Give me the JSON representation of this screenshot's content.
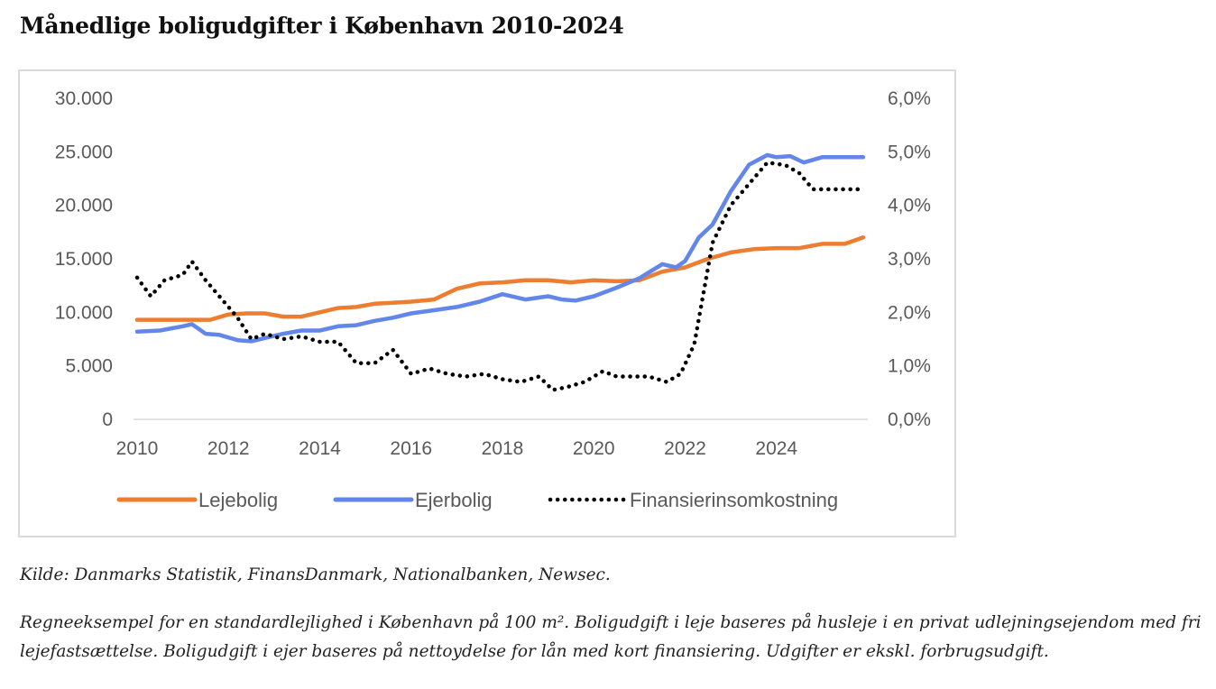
{
  "title": "Månedlige boligudgifter i København 2010-2024",
  "source_note": "Kilde: Danmarks Statistik, FinansDanmark, Nationalbanken, Newsec.",
  "explanation_note": "Regneeksempel for en standardlejlighed i København på 100 m². Boligudgift i leje baseres på husleje i en privat udlejningsejendom med fri lejefastsættelse. Boligudgift i ejer baseres på nettoydelse for lån med kort finansiering. Udgifter er ekskl. forbrugsudgift.",
  "chart_data": {
    "type": "line",
    "title": "Månedlige boligudgifter i København 2010-2024",
    "xlim": [
      2010,
      2026
    ],
    "x_ticks": [
      "2010",
      "2012",
      "2014",
      "2016",
      "2018",
      "2020",
      "2022",
      "2024"
    ],
    "y_left": {
      "ylim": [
        0,
        30000
      ],
      "tick_labels": [
        "0",
        "5.000",
        "10.000",
        "15.000",
        "20.000",
        "25.000",
        "30.000"
      ]
    },
    "y_right": {
      "ylim": [
        0,
        6
      ],
      "tick_labels": [
        "0,0%",
        "1,0%",
        "2,0%",
        "3,0%",
        "4,0%",
        "5,0%",
        "6,0%"
      ]
    },
    "grid": false,
    "legend_position": "bottom",
    "series": [
      {
        "name": "Lejebolig",
        "color": "#ED7D31",
        "style": "solid",
        "axis": "left",
        "x": [
          2010.0,
          2011.0,
          2011.6,
          2012.0,
          2012.4,
          2012.8,
          2013.2,
          2013.6,
          2014.0,
          2014.4,
          2014.8,
          2015.2,
          2015.6,
          2016.0,
          2016.5,
          2017.0,
          2017.5,
          2018.0,
          2018.5,
          2019.0,
          2019.5,
          2020.0,
          2020.5,
          2021.0,
          2021.5,
          2022.0,
          2022.5,
          2023.0,
          2023.5,
          2024.0,
          2024.5,
          2025.0,
          2025.5,
          2025.9
        ],
        "y": [
          9300,
          9300,
          9300,
          9800,
          9900,
          9900,
          9600,
          9600,
          10000,
          10400,
          10500,
          10800,
          10900,
          11000,
          11200,
          12200,
          12700,
          12800,
          13000,
          13000,
          12800,
          13000,
          12900,
          13000,
          13800,
          14200,
          15000,
          15600,
          15900,
          16000,
          16000,
          16400,
          16400,
          17000
        ]
      },
      {
        "name": "Ejerbolig",
        "color": "#6286E9",
        "style": "solid",
        "axis": "left",
        "x": [
          2010.0,
          2010.5,
          2011.0,
          2011.2,
          2011.5,
          2011.8,
          2012.2,
          2012.5,
          2012.8,
          2013.2,
          2013.6,
          2014.0,
          2014.4,
          2014.8,
          2015.2,
          2015.6,
          2016.0,
          2016.5,
          2017.0,
          2017.5,
          2018.0,
          2018.5,
          2019.0,
          2019.3,
          2019.6,
          2020.0,
          2020.5,
          2021.0,
          2021.5,
          2021.8,
          2022.0,
          2022.3,
          2022.6,
          2023.0,
          2023.4,
          2023.8,
          2024.0,
          2024.3,
          2024.6,
          2025.0,
          2025.5,
          2025.9
        ],
        "y": [
          8200,
          8300,
          8700,
          8900,
          8000,
          7900,
          7400,
          7300,
          7600,
          8000,
          8300,
          8300,
          8700,
          8800,
          9200,
          9500,
          9900,
          10200,
          10500,
          11000,
          11700,
          11200,
          11500,
          11200,
          11100,
          11500,
          12300,
          13200,
          14500,
          14200,
          14800,
          17000,
          18200,
          21300,
          23800,
          24700,
          24500,
          24600,
          24000,
          24500,
          24500,
          24500
        ]
      },
      {
        "name": "Finansierinsomkostning",
        "color": "#000000",
        "style": "dotted",
        "axis": "right",
        "x": [
          2010.0,
          2010.3,
          2010.6,
          2011.0,
          2011.2,
          2011.5,
          2011.8,
          2012.2,
          2012.5,
          2012.8,
          2013.2,
          2013.6,
          2014.0,
          2014.4,
          2014.8,
          2015.2,
          2015.6,
          2016.0,
          2016.4,
          2016.8,
          2017.2,
          2017.6,
          2018.0,
          2018.4,
          2018.8,
          2019.1,
          2019.4,
          2019.8,
          2020.2,
          2020.5,
          2020.8,
          2021.2,
          2021.6,
          2021.9,
          2022.2,
          2022.6,
          2023.0,
          2023.4,
          2023.8,
          2024.2,
          2024.5,
          2024.8,
          2025.2,
          2025.9
        ],
        "y": [
          2.65,
          2.3,
          2.6,
          2.7,
          2.95,
          2.6,
          2.3,
          1.9,
          1.5,
          1.6,
          1.5,
          1.55,
          1.45,
          1.45,
          1.05,
          1.05,
          1.3,
          0.85,
          0.95,
          0.85,
          0.8,
          0.85,
          0.75,
          0.7,
          0.8,
          0.55,
          0.6,
          0.7,
          0.9,
          0.8,
          0.8,
          0.8,
          0.7,
          0.85,
          1.4,
          3.3,
          4.0,
          4.4,
          4.8,
          4.75,
          4.6,
          4.3,
          4.3,
          4.3
        ]
      }
    ]
  }
}
